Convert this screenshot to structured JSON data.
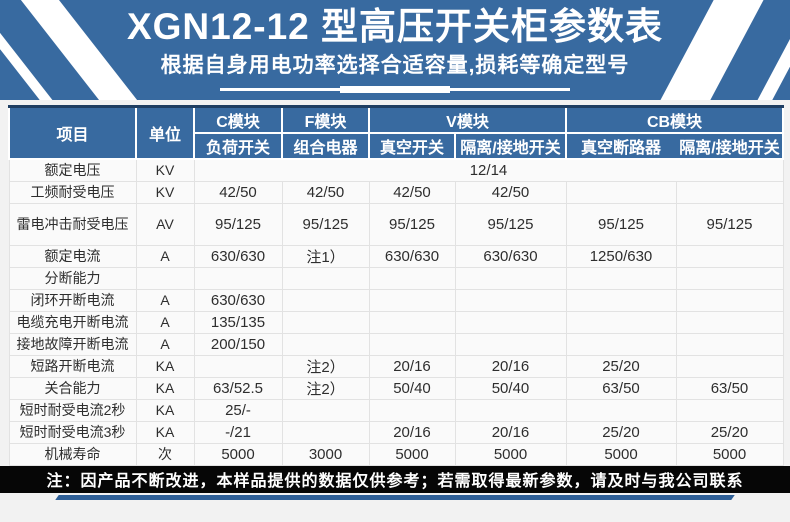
{
  "banner": {
    "title": "XGN12-12 型高压开关柜参数表",
    "subtitle": "根据自身用电功率选择合适容量,损耗等确定型号"
  },
  "table": {
    "header": {
      "item": "项目",
      "unit": "单位",
      "groups": [
        {
          "label": "C模块",
          "subs": [
            "负荷开关"
          ]
        },
        {
          "label": "F模块",
          "subs": [
            "组合电器"
          ]
        },
        {
          "label": "V模块",
          "subs": [
            "真空开关",
            "隔离/接地开关"
          ]
        },
        {
          "label": "CB模块",
          "subs": [
            "真空断路器",
            "隔离/接地开关"
          ]
        }
      ]
    },
    "rows": [
      {
        "label": "额定电压",
        "unit": "KV",
        "merged": "12/14"
      },
      {
        "label": "工频耐受电压",
        "unit": "KV",
        "values": [
          "42/50",
          "42/50",
          "42/50",
          "42/50",
          "",
          ""
        ]
      },
      {
        "label": "雷电冲击耐受电压",
        "unit": "AV",
        "tall": true,
        "values": [
          "95/125",
          "95/125",
          "95/125",
          "95/125",
          "95/125",
          "95/125"
        ]
      },
      {
        "label": "额定电流",
        "unit": "A",
        "values": [
          "630/630",
          "注1）",
          "630/630",
          "630/630",
          "1250/630",
          ""
        ]
      },
      {
        "label": "分断能力",
        "unit": "",
        "values": [
          "",
          "",
          "",
          "",
          "",
          ""
        ]
      },
      {
        "label": "闭环开断电流",
        "unit": "A",
        "values": [
          "630/630",
          "",
          "",
          "",
          "",
          ""
        ]
      },
      {
        "label": "电缆充电开断电流",
        "unit": "A",
        "values": [
          "135/135",
          "",
          "",
          "",
          "",
          ""
        ]
      },
      {
        "label": "接地故障开断电流",
        "unit": "A",
        "values": [
          "200/150",
          "",
          "",
          "",
          "",
          ""
        ]
      },
      {
        "label": "短路开断电流",
        "unit": "KA",
        "values": [
          "",
          "注2）",
          "20/16",
          "20/16",
          "25/20",
          ""
        ]
      },
      {
        "label": "关合能力",
        "unit": "KA",
        "values": [
          "63/52.5",
          "注2）",
          "50/40",
          "50/40",
          "63/50",
          "63/50"
        ]
      },
      {
        "label": "短时耐受电流2秒",
        "unit": "KA",
        "values": [
          "25/-",
          "",
          "",
          "",
          "",
          ""
        ]
      },
      {
        "label": "短时耐受电流3秒",
        "unit": "KA",
        "values": [
          "-/21",
          "",
          "20/16",
          "20/16",
          "25/20",
          "25/20"
        ]
      },
      {
        "label": "机械寿命",
        "unit": "次",
        "values": [
          "5000",
          "3000",
          "5000",
          "5000",
          "5000",
          "5000"
        ]
      }
    ]
  },
  "footer": {
    "note": "注：因产品不断改进，本样品提供的数据仅供参考；若需取得最新参数，请及时与我公司联系"
  },
  "colors": {
    "banner_blue": "#386AA0",
    "dark_navy_border": "#1E3E62",
    "table_body_bg": "#FAFAFA",
    "grid_line": "#E2E2E2",
    "footer_black": "#060606",
    "bottom_accent_blue": "#2E5F97"
  }
}
